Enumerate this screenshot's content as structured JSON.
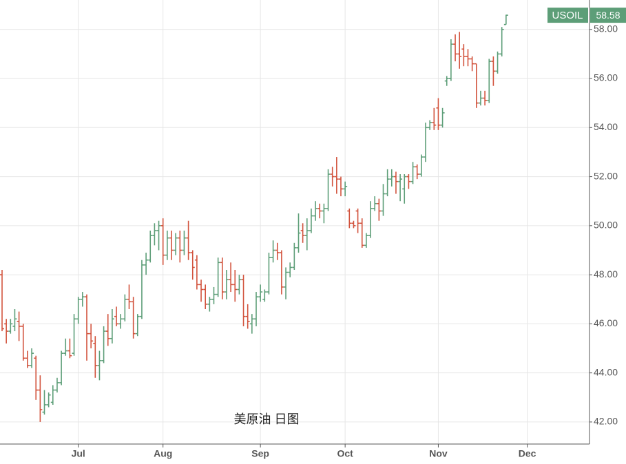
{
  "chart_data": {
    "type": "ohlc",
    "symbol": "USOIL",
    "last_price": 58.58,
    "watermark": "美原油 日图",
    "up_color": "#5d9e78",
    "down_color": "#d2533d",
    "grid": true,
    "ylim": [
      41.1,
      59.2
    ],
    "yticks": [
      {
        "value": 42,
        "label": "42.00"
      },
      {
        "value": 44,
        "label": "44.00"
      },
      {
        "value": 46,
        "label": "46.00"
      },
      {
        "value": 48,
        "label": "48.00"
      },
      {
        "value": 50,
        "label": "50.00"
      },
      {
        "value": 52,
        "label": "52.00"
      },
      {
        "value": 54,
        "label": "54.00"
      },
      {
        "value": 56,
        "label": "56.00"
      },
      {
        "value": 58,
        "label": "58.00"
      }
    ],
    "categories": [
      null,
      null,
      null,
      null,
      null,
      null,
      null,
      null,
      null,
      null,
      null,
      null,
      null,
      null,
      null,
      null,
      null,
      null,
      "Jul",
      null,
      null,
      null,
      null,
      null,
      null,
      null,
      null,
      null,
      null,
      null,
      null,
      null,
      null,
      null,
      null,
      null,
      null,
      null,
      "Aug",
      null,
      null,
      null,
      null,
      null,
      null,
      null,
      null,
      null,
      null,
      null,
      null,
      null,
      null,
      null,
      null,
      null,
      null,
      null,
      null,
      null,
      null,
      "Sep",
      null,
      null,
      null,
      null,
      null,
      null,
      null,
      null,
      null,
      null,
      null,
      null,
      null,
      null,
      null,
      null,
      null,
      null,
      null,
      "Oct",
      null,
      null,
      null,
      null,
      null,
      null,
      null,
      null,
      null,
      null,
      null,
      null,
      null,
      null,
      null,
      null,
      null,
      null,
      null,
      null,
      null,
      "Nov",
      null,
      null,
      null,
      null,
      null,
      null,
      null,
      null,
      null,
      null,
      null,
      null,
      null,
      null,
      null,
      null,
      null,
      null,
      null,
      null,
      "Dec"
    ],
    "open": [
      48.0,
      46.0,
      45.7,
      45.9,
      46.1,
      45.9,
      44.6,
      44.3,
      44.6,
      43.3,
      42.4,
      42.7,
      42.8,
      43.3,
      43.6,
      44.8,
      44.9,
      44.8,
      46.2,
      47.0,
      47.1,
      45.6,
      45.2,
      44.3,
      44.5,
      45.7,
      45.4,
      46.3,
      46.0,
      46.2,
      47.0,
      46.9,
      45.6,
      46.3,
      48.4,
      48.6,
      49.6,
      49.8,
      50.0,
      48.8,
      49.5,
      49.0,
      49.5,
      49.0,
      49.5,
      48.9,
      48.6,
      47.6,
      47.4,
      46.8,
      47.0,
      47.2,
      48.5,
      47.3,
      47.8,
      47.6,
      47.4,
      47.8,
      46.3,
      46.0,
      46.2,
      47.1,
      47.0,
      47.3,
      48.7,
      49.0,
      48.9,
      47.5,
      48.1,
      48.3,
      49.1,
      49.8,
      49.6,
      49.8,
      50.4,
      50.7,
      50.6,
      50.7,
      52.1,
      52.0,
      51.9,
      51.5,
      50.6,
      50.1,
      50.6,
      50.1,
      49.2,
      49.6,
      50.7,
      50.9,
      50.6,
      51.3,
      51.9,
      52.0,
      51.8,
      51.5,
      52.0,
      51.8,
      52.4,
      52.1,
      52.8,
      54.0,
      54.2,
      54.8,
      54.1,
      55.9,
      56.0,
      57.4,
      57.0,
      57.2,
      56.9,
      56.8,
      56.6,
      55.0,
      55.2,
      55.1,
      56.7,
      56.3,
      57.0,
      58.2,
      null,
      null,
      null,
      null,
      null
    ],
    "high": [
      48.2,
      46.2,
      46.2,
      46.6,
      46.5,
      46.0,
      44.9,
      45.0,
      44.7,
      43.9,
      43.3,
      43.2,
      43.5,
      43.8,
      44.9,
      45.4,
      45.4,
      46.4,
      47.1,
      47.3,
      47.2,
      46.0,
      45.5,
      44.9,
      45.9,
      46.4,
      46.6,
      46.7,
      46.4,
      47.2,
      47.6,
      47.1,
      46.4,
      48.6,
      48.9,
      49.8,
      50.1,
      50.2,
      50.3,
      49.8,
      49.8,
      49.7,
      49.8,
      49.8,
      50.2,
      49.0,
      48.8,
      47.8,
      47.6,
      47.1,
      47.5,
      48.7,
      48.7,
      48.2,
      48.5,
      48.2,
      48.0,
      48.0,
      46.8,
      46.4,
      47.3,
      47.6,
      47.4,
      48.9,
      49.4,
      49.3,
      49.0,
      48.3,
      48.5,
      49.3,
      50.5,
      50.1,
      50.3,
      50.7,
      51.0,
      50.9,
      50.9,
      52.3,
      52.4,
      52.8,
      52.0,
      51.8,
      50.7,
      50.2,
      50.7,
      50.3,
      49.7,
      51.0,
      51.2,
      51.1,
      51.7,
      52.3,
      52.3,
      52.2,
      52.1,
      52.1,
      52.1,
      52.6,
      52.5,
      52.9,
      54.2,
      54.3,
      54.8,
      55.2,
      54.8,
      56.1,
      57.6,
      57.8,
      57.9,
      57.4,
      57.2,
      56.9,
      56.6,
      55.5,
      55.5,
      56.8,
      56.9,
      57.1,
      58.1,
      58.6,
      null,
      null,
      null,
      null,
      null
    ],
    "low": [
      45.7,
      45.2,
      45.6,
      45.7,
      45.3,
      44.5,
      44.2,
      44.2,
      42.9,
      42.0,
      42.3,
      42.6,
      42.7,
      43.2,
      43.5,
      44.7,
      44.6,
      44.7,
      46.0,
      46.7,
      44.5,
      45.0,
      43.8,
      43.7,
      44.4,
      45.1,
      45.2,
      45.9,
      45.8,
      46.1,
      46.6,
      45.4,
      45.5,
      46.2,
      48.0,
      48.5,
      49.2,
      49.0,
      48.4,
      48.6,
      48.6,
      48.8,
      48.5,
      48.8,
      48.6,
      47.8,
      47.4,
      46.9,
      46.6,
      46.5,
      46.8,
      47.1,
      47.0,
      47.0,
      47.3,
      46.9,
      47.2,
      45.9,
      45.8,
      45.6,
      45.9,
      46.9,
      46.9,
      47.2,
      48.5,
      48.6,
      47.2,
      47.0,
      47.9,
      48.2,
      48.9,
      49.3,
      49.0,
      49.7,
      50.2,
      50.3,
      50.1,
      50.6,
      51.6,
      51.3,
      51.2,
      51.2,
      49.9,
      49.9,
      49.7,
      49.1,
      49.1,
      49.5,
      50.6,
      50.2,
      50.4,
      51.2,
      51.6,
      51.3,
      51.0,
      50.9,
      51.5,
      51.7,
      51.9,
      52.0,
      52.6,
      53.9,
      53.9,
      53.9,
      54.0,
      55.7,
      55.9,
      56.7,
      56.4,
      56.5,
      56.5,
      56.3,
      54.8,
      54.9,
      54.9,
      55.0,
      55.7,
      56.2,
      56.9,
      58.2,
      null,
      null,
      null,
      null,
      null
    ],
    "close": [
      45.8,
      45.7,
      46.0,
      46.2,
      45.9,
      44.6,
      44.3,
      44.8,
      43.3,
      42.5,
      42.7,
      43.1,
      43.3,
      43.6,
      44.8,
      44.9,
      44.7,
      46.2,
      47.0,
      47.1,
      45.6,
      45.3,
      44.3,
      44.5,
      45.7,
      45.4,
      46.2,
      46.0,
      46.2,
      47.0,
      46.9,
      45.6,
      46.3,
      48.4,
      48.6,
      49.6,
      49.8,
      50.0,
      48.8,
      49.5,
      49.0,
      49.5,
      49.0,
      49.5,
      48.9,
      48.3,
      47.6,
      47.4,
      46.8,
      47.0,
      47.2,
      48.5,
      47.3,
      47.8,
      47.6,
      47.4,
      47.8,
      46.3,
      46.1,
      46.2,
      47.1,
      47.3,
      47.3,
      48.7,
      49.0,
      48.9,
      47.5,
      48.1,
      48.3,
      49.1,
      49.7,
      49.6,
      49.8,
      50.4,
      50.7,
      50.6,
      50.7,
      52.1,
      52.0,
      51.9,
      51.5,
      51.6,
      50.1,
      50.0,
      50.1,
      49.2,
      49.6,
      50.7,
      50.9,
      50.6,
      51.3,
      51.9,
      52.0,
      51.8,
      51.9,
      52.0,
      51.8,
      52.4,
      52.1,
      52.8,
      54.0,
      54.2,
      54.1,
      54.1,
      54.6,
      56.0,
      57.4,
      57.0,
      56.9,
      56.9,
      56.8,
      56.6,
      55.0,
      55.2,
      55.1,
      56.7,
      56.3,
      57.0,
      58.0,
      58.58,
      null,
      null,
      null,
      null,
      null
    ]
  }
}
